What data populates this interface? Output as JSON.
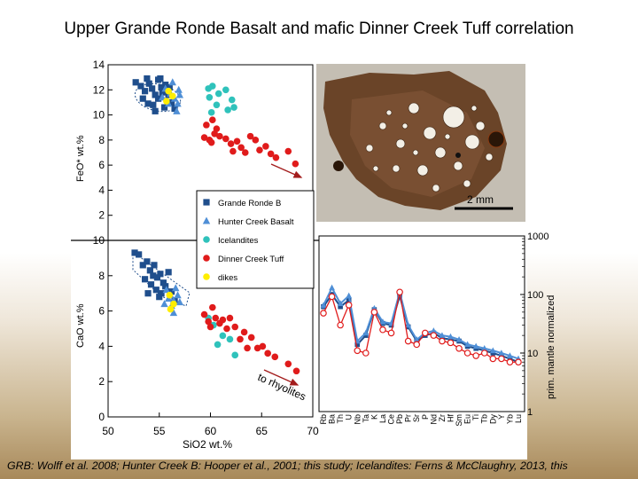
{
  "title": "Upper Grande Ronde Basalt and mafic Dinner Creek Tuff correlation",
  "caption": "GRB: Wolff et al. 2008; Hunter Creek B: Hooper et al., 2001; this study; Icelandites: Ferns & McClaughry, 2013, this",
  "colors": {
    "grande_ronde": "#1f4e8c",
    "hunter_creek": "#4f8fd6",
    "icelandites": "#2fc2bb",
    "dinner_creek": "#e01b1b",
    "dikes": "#ffee00",
    "trend_arrow": "#a31d1d"
  },
  "photo": {
    "scale_label": "2 mm",
    "icons": [
      "vesicle-icon"
    ]
  },
  "chart_data": [
    {
      "type": "scatter",
      "title": "",
      "xlabel": "",
      "ylabel": "FeO* wt.%",
      "xlim": [
        50,
        70
      ],
      "ylim": [
        0,
        14
      ],
      "yticks": [
        "0",
        "2",
        "4",
        "6",
        "8",
        "10",
        "12",
        "14"
      ],
      "annotations": [],
      "series": [
        {
          "name": "Grande Ronde B",
          "marker": "square",
          "points": [
            [
              52.7,
              12.6
            ],
            [
              53.2,
              12.3
            ],
            [
              53.6,
              11.9
            ],
            [
              54.0,
              12.5
            ],
            [
              54.3,
              12.1
            ],
            [
              54.6,
              11.6
            ],
            [
              54.9,
              12.8
            ],
            [
              55.2,
              12.2
            ],
            [
              53.4,
              11.3
            ],
            [
              53.9,
              10.9
            ],
            [
              54.4,
              10.8
            ],
            [
              54.9,
              11.3
            ],
            [
              55.3,
              11.8
            ],
            [
              55.6,
              12.4
            ],
            [
              55.9,
              11.6
            ],
            [
              56.2,
              11.0
            ],
            [
              55.5,
              10.6
            ],
            [
              56.5,
              10.5
            ],
            [
              53.8,
              12.9
            ],
            [
              55.1,
              12.9
            ],
            [
              56.0,
              12.2
            ],
            [
              54.6,
              10.3
            ]
          ]
        },
        {
          "name": "Hunter Creek Basalt",
          "marker": "triangle",
          "points": [
            [
              55.6,
              12.1
            ],
            [
              56.1,
              11.7
            ],
            [
              56.5,
              11.3
            ],
            [
              56.8,
              10.9
            ],
            [
              56.3,
              12.6
            ],
            [
              55.9,
              10.9
            ],
            [
              57.0,
              11.6
            ],
            [
              56.7,
              10.3
            ],
            [
              55.3,
              11.4
            ],
            [
              56.9,
              12.0
            ]
          ]
        },
        {
          "name": "Icelandites",
          "marker": "circle",
          "points": [
            [
              59.8,
              12.1
            ],
            [
              60.2,
              12.3
            ],
            [
              60.8,
              11.7
            ],
            [
              61.5,
              12.0
            ],
            [
              59.9,
              11.4
            ],
            [
              62.1,
              11.2
            ],
            [
              60.6,
              10.8
            ],
            [
              61.7,
              10.4
            ],
            [
              60.1,
              10.2
            ],
            [
              62.3,
              10.6
            ]
          ]
        },
        {
          "name": "Dinner Creek Tuff",
          "marker": "circle",
          "points": [
            [
              59.6,
              9.2
            ],
            [
              60.2,
              9.6
            ],
            [
              60.6,
              8.9
            ],
            [
              59.4,
              8.2
            ],
            [
              59.9,
              8.0
            ],
            [
              60.4,
              8.5
            ],
            [
              60.9,
              8.3
            ],
            [
              61.5,
              8.1
            ],
            [
              62.0,
              7.7
            ],
            [
              62.6,
              7.9
            ],
            [
              63.0,
              7.4
            ],
            [
              63.9,
              8.3
            ],
            [
              64.4,
              8.0
            ],
            [
              64.8,
              7.2
            ],
            [
              65.4,
              7.5
            ],
            [
              65.9,
              6.9
            ],
            [
              62.2,
              7.1
            ],
            [
              63.4,
              7.0
            ],
            [
              66.4,
              6.6
            ],
            [
              67.6,
              7.1
            ],
            [
              68.3,
              6.1
            ],
            [
              60.1,
              7.8
            ]
          ]
        },
        {
          "name": "dikes",
          "marker": "circle",
          "points": [
            [
              55.9,
              11.9
            ],
            [
              56.3,
              11.5
            ],
            [
              55.7,
              11.1
            ]
          ]
        }
      ]
    },
    {
      "type": "scatter",
      "title": "",
      "xlabel": "SiO2 wt.%",
      "ylabel": "CaO wt.%",
      "xlim": [
        50,
        70
      ],
      "ylim": [
        0,
        10
      ],
      "xticks": [
        "50",
        "55",
        "60",
        "65",
        "70"
      ],
      "yticks": [
        "0",
        "2",
        "4",
        "6",
        "8",
        "10"
      ],
      "annotations": [
        "to rhyolites"
      ],
      "series": [
        {
          "name": "Grande Ronde B",
          "marker": "square",
          "points": [
            [
              52.6,
              9.3
            ],
            [
              53.0,
              9.2
            ],
            [
              53.4,
              8.6
            ],
            [
              53.8,
              8.8
            ],
            [
              54.1,
              8.3
            ],
            [
              54.4,
              8.0
            ],
            [
              54.8,
              7.9
            ],
            [
              55.1,
              8.1
            ],
            [
              55.4,
              7.6
            ],
            [
              53.6,
              7.8
            ],
            [
              54.2,
              7.5
            ],
            [
              54.7,
              7.2
            ],
            [
              55.2,
              7.0
            ],
            [
              55.6,
              7.4
            ],
            [
              55.9,
              8.2
            ],
            [
              56.2,
              7.1
            ],
            [
              53.9,
              7.0
            ],
            [
              55.0,
              6.8
            ],
            [
              56.5,
              6.6
            ],
            [
              54.5,
              8.6
            ]
          ]
        },
        {
          "name": "Hunter Creek Basalt",
          "marker": "triangle",
          "points": [
            [
              55.7,
              7.2
            ],
            [
              56.1,
              6.9
            ],
            [
              56.4,
              6.6
            ],
            [
              56.8,
              6.9
            ],
            [
              56.2,
              6.3
            ],
            [
              55.9,
              6.7
            ],
            [
              57.0,
              6.5
            ],
            [
              56.6,
              7.3
            ],
            [
              56.4,
              5.9
            ],
            [
              55.5,
              6.4
            ]
          ]
        },
        {
          "name": "Icelandites",
          "marker": "circle",
          "points": [
            [
              59.8,
              5.6
            ],
            [
              60.3,
              5.2
            ],
            [
              61.2,
              4.6
            ],
            [
              60.7,
              4.1
            ],
            [
              62.4,
              3.5
            ],
            [
              61.9,
              4.4
            ]
          ]
        },
        {
          "name": "Dinner Creek Tuff",
          "marker": "circle",
          "points": [
            [
              59.4,
              5.8
            ],
            [
              59.8,
              5.4
            ],
            [
              60.2,
              6.2
            ],
            [
              60.5,
              5.6
            ],
            [
              60.9,
              5.3
            ],
            [
              61.2,
              5.5
            ],
            [
              61.6,
              5.0
            ],
            [
              61.9,
              5.6
            ],
            [
              62.4,
              5.1
            ],
            [
              62.9,
              4.4
            ],
            [
              63.3,
              4.8
            ],
            [
              64.0,
              4.5
            ],
            [
              64.6,
              3.9
            ],
            [
              65.1,
              4.0
            ],
            [
              65.6,
              3.6
            ],
            [
              66.3,
              3.4
            ],
            [
              67.6,
              3.0
            ],
            [
              68.4,
              2.6
            ],
            [
              60.0,
              5.1
            ],
            [
              63.6,
              3.9
            ]
          ]
        },
        {
          "name": "dikes",
          "marker": "circle",
          "points": [
            [
              56.0,
              6.9
            ],
            [
              56.4,
              6.4
            ],
            [
              56.1,
              6.1
            ]
          ]
        }
      ]
    },
    {
      "type": "line",
      "title": "",
      "xlabel": "",
      "ylabel": "prim. mantle normalized",
      "yscale": "log",
      "ylim": [
        1,
        1000
      ],
      "yticks": [
        "1",
        "10",
        "100",
        "1000"
      ],
      "categories": [
        "Rb",
        "Ba",
        "Th",
        "U",
        "Nb",
        "Ta",
        "K",
        "La",
        "Ce",
        "Pb",
        "Pr",
        "Sr",
        "P",
        "Nd",
        "Zr",
        "Hf",
        "Sm",
        "Eu",
        "Ti",
        "Tb",
        "Dy",
        "Y",
        "Yb",
        "Lu"
      ],
      "series": [
        {
          "name": "Grande Ronde B",
          "values": [
            62,
            100,
            62,
            80,
            14,
            20,
            55,
            32,
            30,
            95,
            28,
            16,
            20,
            22,
            18,
            17,
            16,
            13,
            12,
            11,
            10,
            9,
            8,
            7
          ]
        },
        {
          "name": "Hunter Creek Basalt",
          "values": [
            65,
            130,
            70,
            95,
            16,
            22,
            58,
            34,
            32,
            110,
            30,
            17,
            22,
            24,
            20,
            19,
            17,
            14,
            13,
            12,
            11,
            10,
            9,
            8
          ]
        },
        {
          "name": "Dinner Creek Tuff",
          "values": [
            48,
            92,
            30,
            66,
            11,
            10,
            50,
            25,
            22,
            110,
            16,
            14,
            22,
            20,
            16,
            15,
            12,
            10,
            9,
            10,
            8,
            8,
            7,
            7
          ]
        }
      ]
    }
  ]
}
